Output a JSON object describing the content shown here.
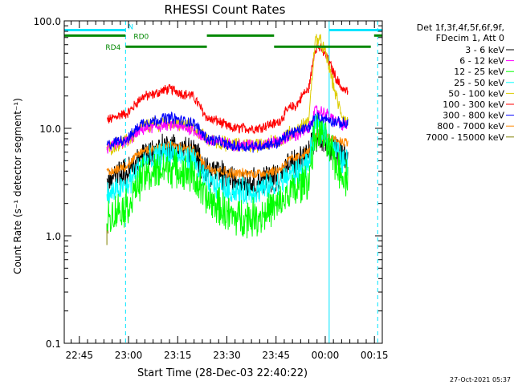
{
  "chart_data": {
    "type": "line",
    "title": "RHESSI Count Rates",
    "xlabel": "Start Time (28-Dec-03 22:40:22)",
    "ylabel": "Count Rate (s⁻¹ detector segment⁻¹)",
    "y_scale": "log",
    "ylim": [
      0.1,
      100.0
    ],
    "y_ticks": [
      "0.1",
      "1.0",
      "10.0",
      "100.0"
    ],
    "xlim_minutes_after_start": [
      0,
      97
    ],
    "x_ticks": [
      {
        "label": "22:45",
        "minute": 4.6
      },
      {
        "label": "23:00",
        "minute": 19.6
      },
      {
        "label": "23:15",
        "minute": 34.6
      },
      {
        "label": "23:30",
        "minute": 49.6
      },
      {
        "label": "23:45",
        "minute": 64.6
      },
      {
        "label": "00:00",
        "minute": 79.6
      },
      {
        "label": "00:15",
        "minute": 94.6
      }
    ],
    "legend_header": [
      "Det 1f,3f,4f,5f,6f,9f,",
      "FDecim 1, Att 0"
    ],
    "legend_position": "right",
    "data_start_minute": 13,
    "data_end_minute": 86.5,
    "flare_peak_minute": 77,
    "vertical_lines": [
      {
        "minute": 0,
        "color": "#00e5ff",
        "style": "solid"
      },
      {
        "minute": 18.7,
        "color": "#00e5ff",
        "style": "dashed"
      },
      {
        "minute": 80.8,
        "color": "#00e5ff",
        "style": "solid"
      },
      {
        "minute": 95.6,
        "color": "#00e5ff",
        "style": "dashed"
      }
    ],
    "flag_bars": [
      {
        "label": "N",
        "color": "#00e5ff",
        "level": 82.0,
        "segments": [
          [
            0,
            18.7
          ],
          [
            80.8,
            97
          ]
        ]
      },
      {
        "label": "RD0",
        "color": "#008800",
        "level": 73.0,
        "segments": [
          [
            0,
            18.7
          ],
          [
            43.5,
            64
          ],
          [
            94.5,
            97
          ]
        ]
      },
      {
        "label": "RD4",
        "color": "#008800",
        "level": 57.5,
        "segments": [
          [
            18.7,
            43.5
          ],
          [
            64,
            93.5
          ]
        ]
      }
    ],
    "series": [
      {
        "name": "3 - 6 keV",
        "color": "#000000",
        "values": [
          3.2,
          3.8,
          5.8,
          6.8,
          6.2,
          4.0,
          3.3,
          3.2,
          3.5,
          4.6,
          5.4,
          8.0,
          5.8
        ]
      },
      {
        "name": "6 - 12 keV",
        "color": "#ff00ff",
        "values": [
          6.5,
          7.4,
          10.0,
          10.8,
          10.0,
          7.6,
          7.0,
          7.0,
          7.4,
          8.6,
          9.5,
          14.5,
          10.5
        ]
      },
      {
        "name": "12 - 25 keV",
        "color": "#00ff00",
        "values": [
          1.5,
          1.8,
          3.7,
          4.3,
          3.8,
          2.0,
          1.5,
          1.5,
          1.8,
          2.6,
          3.2,
          9.0,
          3.5
        ]
      },
      {
        "name": "25 - 50 keV",
        "color": "#00ffff",
        "values": [
          2.4,
          2.8,
          5.0,
          5.8,
          5.2,
          3.0,
          2.6,
          2.6,
          2.9,
          3.8,
          4.5,
          10.0,
          4.8
        ]
      },
      {
        "name": "50 - 100 keV",
        "color": "#ddcc00",
        "values": [
          6.5,
          7.4,
          10.5,
          11.5,
          10.5,
          7.6,
          7.0,
          7.0,
          7.4,
          9.2,
          11.0,
          68.0,
          11.5
        ]
      },
      {
        "name": "100 - 300 keV",
        "color": "#ff0000",
        "values": [
          12.0,
          13.5,
          20.0,
          23.0,
          20.5,
          12.0,
          10.0,
          10.0,
          11.0,
          16.0,
          22.0,
          57.0,
          22.0
        ]
      },
      {
        "name": "300 - 800 keV",
        "color": "#0000ff",
        "values": [
          7.0,
          7.8,
          11.5,
          12.5,
          11.5,
          7.8,
          6.8,
          6.8,
          7.2,
          9.2,
          10.0,
          12.5,
          11.0
        ]
      },
      {
        "name": "800 - 7000 keV",
        "color": "#ff8800",
        "values": [
          3.8,
          4.4,
          6.3,
          6.9,
          6.4,
          4.2,
          3.8,
          3.8,
          4.0,
          5.2,
          5.9,
          8.3,
          7.5
        ]
      },
      {
        "name": "7000 - 15000 keV",
        "color": "#808000",
        "values": [
          0.9,
          1.0,
          1.1,
          1.1,
          1.1,
          1.0,
          1.0,
          1.0,
          1.0,
          1.0,
          1.1,
          1.2,
          1.1
        ]
      }
    ],
    "series_x_minutes": [
      13,
      18,
      25,
      32,
      38,
      45,
      52,
      58,
      64,
      70,
      74,
      77,
      86.5
    ]
  },
  "footer_timestamp": "27-Oct-2021 05:37"
}
